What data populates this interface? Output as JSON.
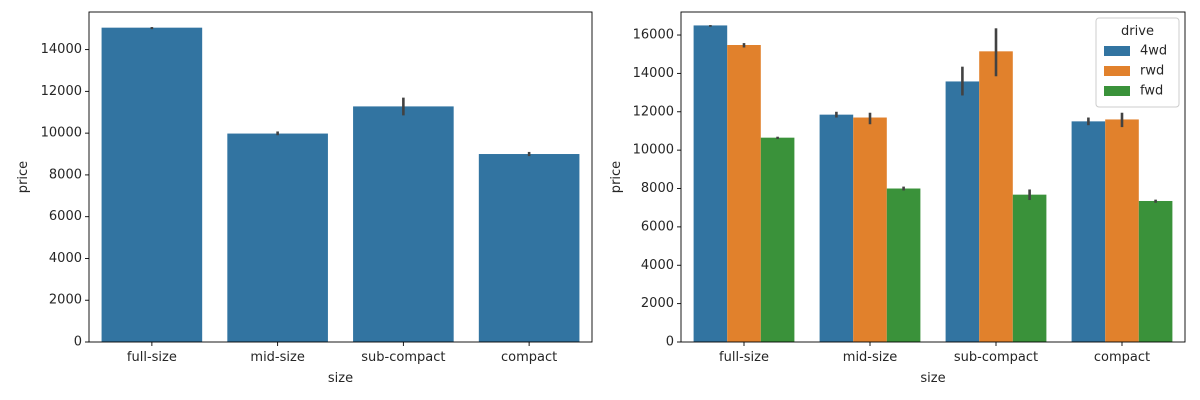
{
  "chart_data": [
    {
      "type": "bar",
      "categories": [
        "full-size",
        "mid-size",
        "sub-compact",
        "compact"
      ],
      "values": [
        15050,
        9980,
        11280,
        9000
      ],
      "error_bars": [
        [
          14980,
          15080
        ],
        [
          9900,
          10080
        ],
        [
          10850,
          11700
        ],
        [
          8900,
          9100
        ]
      ],
      "series_color": "#3274a1",
      "xlabel": "size",
      "ylabel": "price",
      "ylim": [
        0,
        15800
      ],
      "yticks": [
        0,
        2000,
        4000,
        6000,
        8000,
        10000,
        12000,
        14000
      ],
      "grid": false
    },
    {
      "type": "bar",
      "categories": [
        "full-size",
        "mid-size",
        "sub-compact",
        "compact"
      ],
      "series": [
        {
          "name": "4wd",
          "color": "#3274a1",
          "values": [
            16500,
            11850,
            13580,
            11500
          ],
          "error_bars": [
            [
              16430,
              16520
            ],
            [
              11700,
              12000
            ],
            [
              12850,
              14350
            ],
            [
              11300,
              11700
            ]
          ]
        },
        {
          "name": "rwd",
          "color": "#e1812c",
          "values": [
            15480,
            11700,
            15150,
            11600
          ],
          "error_bars": [
            [
              15350,
              15580
            ],
            [
              11350,
              11950
            ],
            [
              13850,
              16350
            ],
            [
              11200,
              11950
            ]
          ]
        },
        {
          "name": "fwd",
          "color": "#3a923a",
          "values": [
            10650,
            8000,
            7680,
            7350
          ],
          "error_bars": [
            [
              10580,
              10700
            ],
            [
              7900,
              8100
            ],
            [
              7400,
              7950
            ],
            [
              7260,
              7420
            ]
          ]
        }
      ],
      "xlabel": "size",
      "ylabel": "price",
      "ylim": [
        0,
        17200
      ],
      "yticks": [
        0,
        2000,
        4000,
        6000,
        8000,
        10000,
        12000,
        14000,
        16000
      ],
      "legend": {
        "title": "drive",
        "placement": "top-right"
      },
      "grid": false
    }
  ]
}
